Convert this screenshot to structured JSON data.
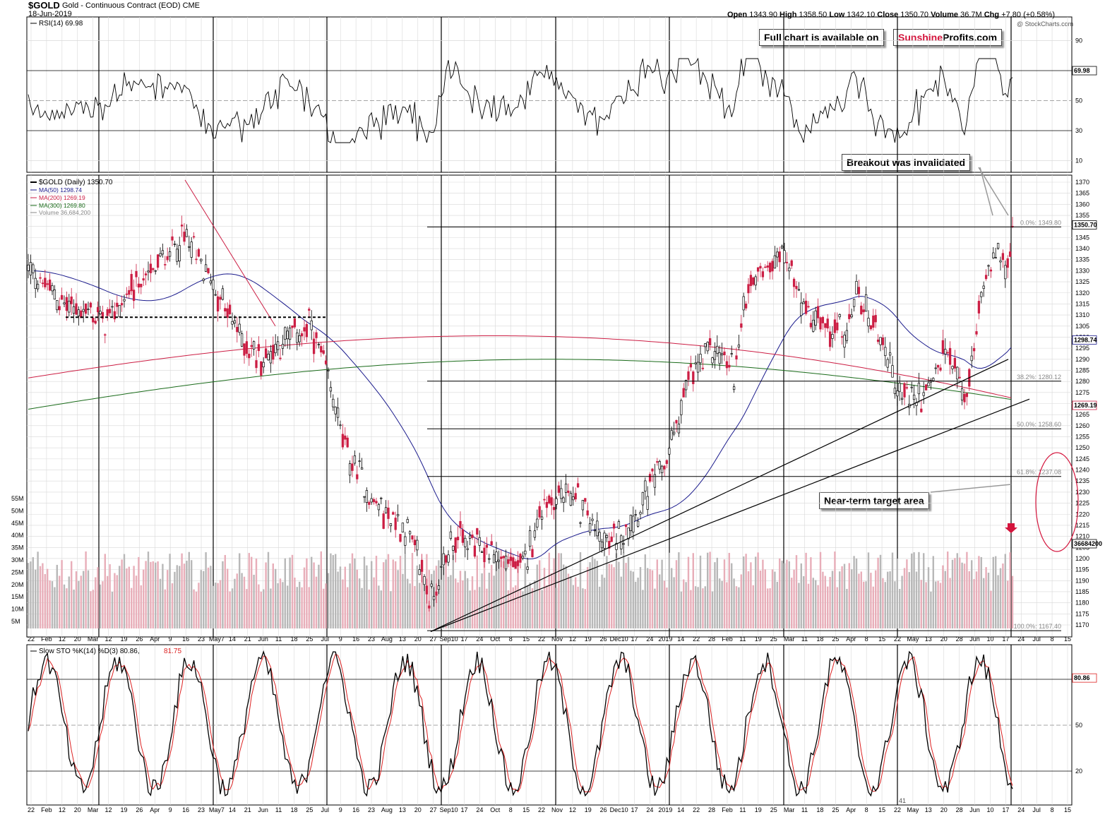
{
  "header": {
    "ticker": "$GOLD",
    "title": "Gold - Continuous Contract (EOD)",
    "exchange": "CME",
    "date": "18-Jun-2019",
    "quote": {
      "open": "1343.90",
      "high": "1358.50",
      "low": "1342.10",
      "close": "1350.70",
      "volume": "36.7M",
      "chg": "+7.80 (+0.58%)"
    },
    "watermark": "@ StockCharts.com"
  },
  "banner": {
    "text": "Full chart is available on",
    "brand1": "Sunshine",
    "brand2": "Profits.com"
  },
  "annotations": {
    "breakout": "Breakout was invalidated",
    "target": "Near-term target area"
  },
  "colors": {
    "up": "#000000",
    "down": "#cc1e44",
    "ma50": "#1a1a8c",
    "ma200": "#cc1e44",
    "ma300": "#1a6b1a",
    "stoK": "#000000",
    "stoD": "#dd2222",
    "grid": "#d8d8d8"
  },
  "chart_data": [
    {
      "type": "line",
      "title": "RSI(14) 69.98",
      "levels": [
        90,
        70,
        50,
        30,
        10
      ],
      "last_value_label": "69.98",
      "ylim": [
        0,
        100
      ]
    },
    {
      "type": "candlestick",
      "title": "$GOLD (Daily) 1350.70",
      "ylim": [
        1165,
        1375
      ],
      "y_ticks": [
        1170,
        1175,
        1180,
        1185,
        1190,
        1195,
        1200,
        1205,
        1210,
        1215,
        1220,
        1225,
        1230,
        1235,
        1240,
        1245,
        1250,
        1255,
        1260,
        1265,
        1270,
        1275,
        1280,
        1285,
        1290,
        1295,
        1300,
        1305,
        1310,
        1315,
        1320,
        1325,
        1330,
        1335,
        1340,
        1345,
        1350,
        1355,
        1360,
        1365,
        1370
      ],
      "series": [
        {
          "name": "MA(50) 1298.74",
          "last": "1298.74"
        },
        {
          "name": "MA(200) 1269.19",
          "last": "1269.19"
        },
        {
          "name": "MA(300) 1269.80"
        },
        {
          "name": "Volume 36,684,200",
          "last": "36684200"
        }
      ],
      "price_label": "1350.70",
      "fib_levels": [
        {
          "label": "0.0%: 1349.80",
          "value": 1349.8
        },
        {
          "label": "38.2%: 1280.12",
          "value": 1280.12
        },
        {
          "label": "50.0%: 1258.60",
          "value": 1258.6
        },
        {
          "label": "61.8%: 1237.08",
          "value": 1237.08
        },
        {
          "label": "100.0%: 1167.40",
          "value": 1167.4
        }
      ],
      "volume_ticks": [
        "55M",
        "50M",
        "45M",
        "40M",
        "35M",
        "30M",
        "25M",
        "20M",
        "15M",
        "10M",
        "5M"
      ],
      "x_labels": [
        "22",
        "Feb",
        "12",
        "20",
        "Mar",
        "12",
        "19",
        "26",
        "Apr",
        "9",
        "16",
        "23",
        "May7",
        "14",
        "21",
        "Jun",
        "11",
        "18",
        "25",
        "Jul",
        "9",
        "16",
        "23",
        "Aug",
        "13",
        "20",
        "27",
        "Sep10",
        "17",
        "24",
        "Oct",
        "8",
        "15",
        "22",
        "Nov",
        "12",
        "19",
        "26",
        "Dec10",
        "17",
        "24",
        "2019",
        "14",
        "22",
        "28",
        "Feb",
        "11",
        "19",
        "25",
        "Mar",
        "11",
        "18",
        "25",
        "Apr",
        "8",
        "15",
        "22",
        "May",
        "13",
        "20",
        "28",
        "Jun",
        "10",
        "17",
        "24",
        "Jul",
        "8",
        "15"
      ]
    },
    {
      "type": "line",
      "title": "Slow STO %K(14) %D(3) 80.86,",
      "title_d": "81.75",
      "levels": [
        80,
        50,
        20
      ],
      "last_value_label": "80.86",
      "extra_label": "41",
      "ylim": [
        0,
        100
      ]
    }
  ]
}
